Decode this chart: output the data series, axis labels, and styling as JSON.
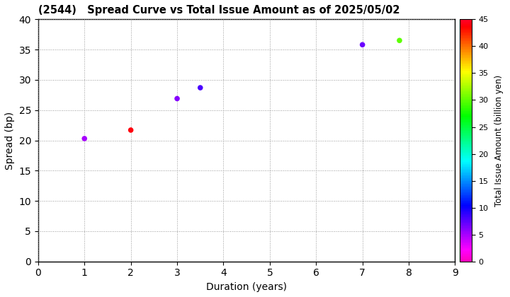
{
  "title": "(2544)   Spread Curve vs Total Issue Amount as of 2025/05/02",
  "xlabel": "Duration (years)",
  "ylabel": "Spread (bp)",
  "colorbar_label": "Total Issue Amount (billion yen)",
  "xlim": [
    0,
    9
  ],
  "ylim": [
    0,
    40
  ],
  "xticks": [
    0,
    1,
    2,
    3,
    4,
    5,
    6,
    7,
    8,
    9
  ],
  "yticks": [
    0,
    5,
    10,
    15,
    20,
    25,
    30,
    35,
    40
  ],
  "colorbar_ticks": [
    0,
    5,
    10,
    15,
    20,
    25,
    30,
    35,
    40,
    45
  ],
  "colorbar_max": 45,
  "points": [
    {
      "duration": 1.0,
      "spread": 20.3,
      "amount": 5
    },
    {
      "duration": 2.0,
      "spread": 21.7,
      "amount": 44
    },
    {
      "duration": 3.0,
      "spread": 26.9,
      "amount": 6
    },
    {
      "duration": 3.5,
      "spread": 28.7,
      "amount": 8
    },
    {
      "duration": 7.0,
      "spread": 35.8,
      "amount": 7
    },
    {
      "duration": 7.8,
      "spread": 36.5,
      "amount": 30
    }
  ],
  "marker_size": 30,
  "background_color": "#ffffff",
  "grid_color": "#999999",
  "grid_linestyle": "dotted",
  "figsize": [
    7.2,
    4.2
  ],
  "dpi": 100
}
